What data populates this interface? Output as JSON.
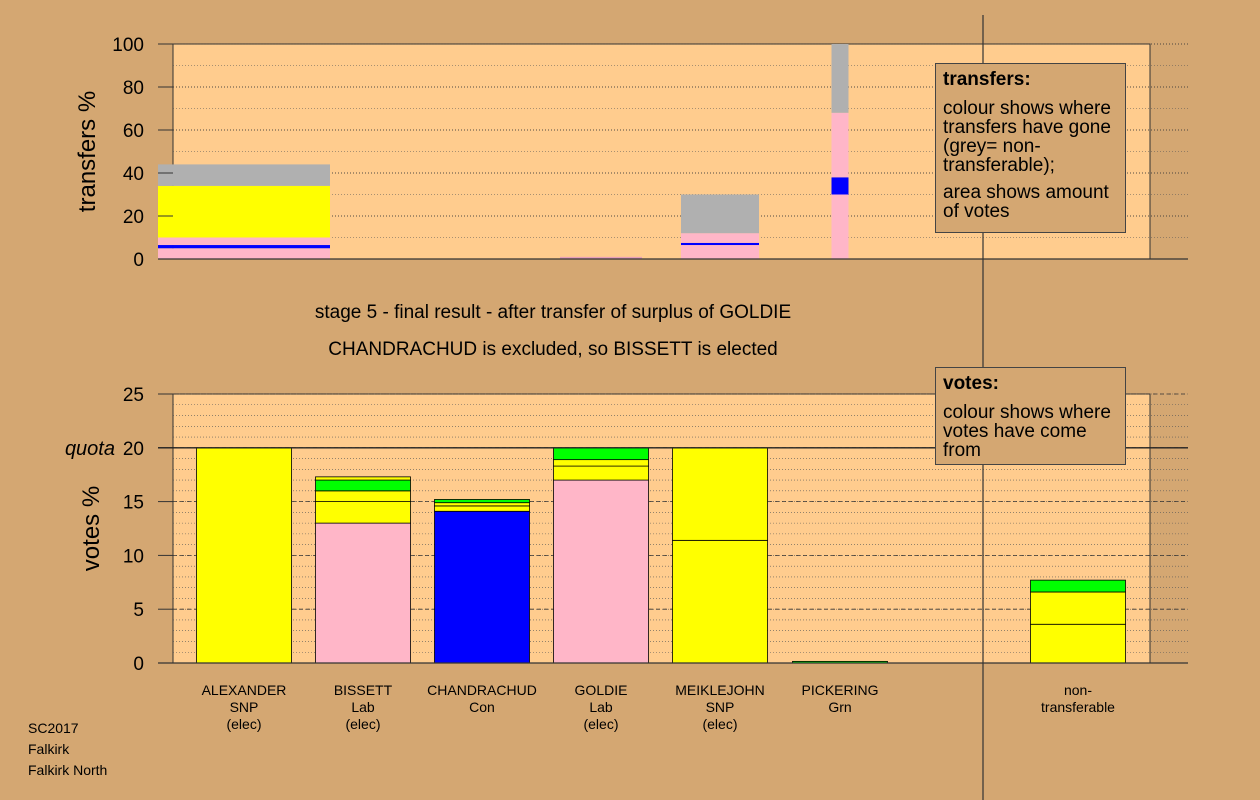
{
  "chart_data": [
    {
      "type": "bar",
      "ylabel": "transfers %",
      "ylim": [
        0,
        100
      ],
      "yticks": [
        0,
        20,
        40,
        60,
        80,
        100
      ],
      "stacks": [
        {
          "candidate": "ALEXANDER",
          "segments": [
            {
              "from": 0,
              "to": 5,
              "color": "#ffb6c8"
            },
            {
              "from": 5,
              "to": 6.5,
              "color": "#0000ff"
            },
            {
              "from": 6.5,
              "to": 10,
              "color": "#ffb6c8"
            },
            {
              "from": 10,
              "to": 34,
              "color": "#ffff00"
            },
            {
              "from": 34,
              "to": 44,
              "color": "#b0b0b0"
            }
          ]
        },
        {
          "candidate": "GOLDIE",
          "segments": [
            {
              "from": 0,
              "to": 1,
              "color": "#e8a0b8"
            }
          ]
        },
        {
          "candidate": "MEIKLEJOHN",
          "segments": [
            {
              "from": 0,
              "to": 6.5,
              "color": "#ffb6c8"
            },
            {
              "from": 6.5,
              "to": 7.5,
              "color": "#0000ff"
            },
            {
              "from": 7.5,
              "to": 12,
              "color": "#ffb6c8"
            },
            {
              "from": 12,
              "to": 30,
              "color": "#b0b0b0"
            }
          ]
        },
        {
          "candidate": "PICKERING",
          "segments": [
            {
              "from": 0,
              "to": 30,
              "color": "#ffb6c8"
            },
            {
              "from": 30,
              "to": 38,
              "color": "#0000ff"
            },
            {
              "from": 38,
              "to": 68,
              "color": "#ffb6c8"
            },
            {
              "from": 68,
              "to": 100,
              "color": "#b0b0b0"
            }
          ]
        }
      ]
    },
    {
      "type": "bar",
      "ylabel": "votes %",
      "ylim": [
        0,
        25
      ],
      "yticks": [
        0,
        5,
        10,
        15,
        20,
        25
      ],
      "quota_label": "quota",
      "quota": 20,
      "stacks": [
        {
          "candidate": "ALEXANDER",
          "segments": [
            {
              "from": 0,
              "to": 20,
              "color": "#ffff00"
            }
          ]
        },
        {
          "candidate": "BISSETT",
          "segments": [
            {
              "from": 0,
              "to": 13,
              "color": "#ffb6c8"
            },
            {
              "from": 13,
              "to": 15,
              "color": "#ffff00"
            },
            {
              "from": 15,
              "to": 16,
              "color": "#ffff00"
            },
            {
              "from": 16,
              "to": 17,
              "color": "#00ff00"
            },
            {
              "from": 17,
              "to": 17.3,
              "color": "#ffff00"
            }
          ]
        },
        {
          "candidate": "CHANDRACHUD",
          "segments": [
            {
              "from": 0,
              "to": 14.1,
              "color": "#0000ff"
            },
            {
              "from": 14.1,
              "to": 14.6,
              "color": "#ffff00"
            },
            {
              "from": 14.6,
              "to": 14.9,
              "color": "#ffff00"
            },
            {
              "from": 14.9,
              "to": 15.2,
              "color": "#00ff00"
            }
          ]
        },
        {
          "candidate": "GOLDIE",
          "segments": [
            {
              "from": 0,
              "to": 17,
              "color": "#ffb6c8"
            },
            {
              "from": 17,
              "to": 18.3,
              "color": "#ffff00"
            },
            {
              "from": 18.3,
              "to": 18.9,
              "color": "#ffff00"
            },
            {
              "from": 18.9,
              "to": 20,
              "color": "#00ff00"
            }
          ]
        },
        {
          "candidate": "MEIKLEJOHN",
          "segments": [
            {
              "from": 0,
              "to": 11.4,
              "color": "#ffff00"
            },
            {
              "from": 11.4,
              "to": 20,
              "color": "#ffff00"
            }
          ]
        },
        {
          "candidate": "PICKERING",
          "segments": [
            {
              "from": 0,
              "to": 0.15,
              "color": "#00ff00"
            }
          ]
        },
        {
          "candidate": "non-transferable",
          "segments": [
            {
              "from": 0,
              "to": 3.6,
              "color": "#ffff00"
            },
            {
              "from": 3.6,
              "to": 6.6,
              "color": "#ffff00"
            },
            {
              "from": 6.6,
              "to": 7.7,
              "color": "#00ff00"
            }
          ]
        }
      ]
    }
  ],
  "stage_title": "stage 5 - final result - after transfer of surplus of GOLDIE",
  "stage_subtitle": "CHANDRACHUD is excluded, so BISSETT is elected",
  "candidates": [
    {
      "name": "ALEXANDER",
      "party": "SNP",
      "status": "(elec)"
    },
    {
      "name": "BISSETT",
      "party": "Lab",
      "status": "(elec)"
    },
    {
      "name": "CHANDRACHUD",
      "party": "Con",
      "status": ""
    },
    {
      "name": "GOLDIE",
      "party": "Lab",
      "status": "(elec)"
    },
    {
      "name": "MEIKLEJOHN",
      "party": "SNP",
      "status": "(elec)"
    },
    {
      "name": "PICKERING",
      "party": "Grn",
      "status": ""
    },
    {
      "name": "non-",
      "party": "transferable",
      "status": ""
    }
  ],
  "transfers_note": {
    "heading": "transfers:",
    "para1": "colour shows where transfers have gone (grey= non-transferable);",
    "para2": "area shows amount of votes"
  },
  "votes_note": {
    "heading": "votes:",
    "para1": "colour shows where votes have come from"
  },
  "footer": {
    "line1": "SC2017",
    "line2": "Falkirk",
    "line3": "Falkirk North"
  }
}
